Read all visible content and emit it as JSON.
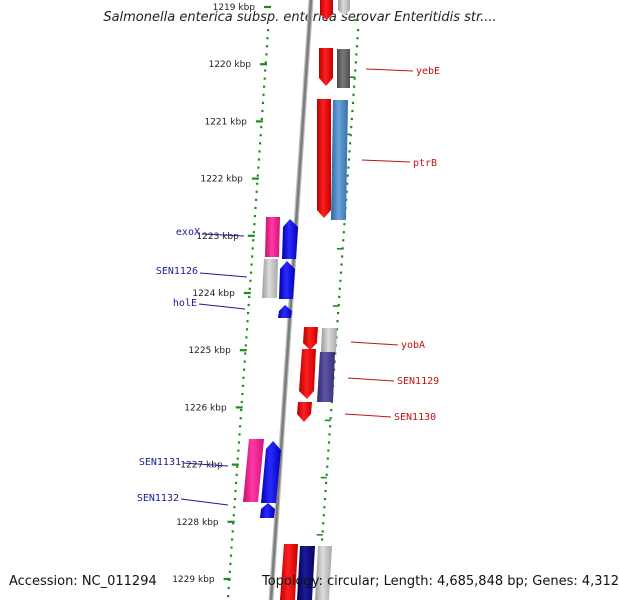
{
  "title": "Salmonella enterica subsp. enterica serovar Enteritidis str....",
  "footer": {
    "accession": "Accession: NC_011294",
    "stats": "Topology: circular; Length: 4,685,848 bp; Genes: 4,312"
  },
  "scale": {
    "ticks": [
      "1219 kbp",
      "1220 kbp",
      "1221 kbp",
      "1222 kbp",
      "1223 kbp",
      "1224 kbp",
      "1225 kbp",
      "1226 kbp",
      "1227 kbp",
      "1228 kbp",
      "1229 kbp"
    ]
  },
  "colors": {
    "forward_red": "#ee0000",
    "reverse_blue": "#0000ee",
    "forward_pink": "#ee1188",
    "grey": "#c0c0c0",
    "dark_grey": "#666666",
    "steel_blue": "#4a86c4",
    "indigo": "#4a3f8c",
    "navy": "#0a0a7a",
    "dots": "#1e8c1e",
    "backbone": "#8a8a8a"
  },
  "genes_left": [
    {
      "label": "exoX"
    },
    {
      "label": "SEN1126"
    },
    {
      "label": "holE"
    },
    {
      "label": "SEN1131"
    },
    {
      "label": "SEN1132"
    }
  ],
  "genes_right": [
    {
      "label": "yebE"
    },
    {
      "label": "ptrB"
    },
    {
      "label": "yobA"
    },
    {
      "label": "SEN1129"
    },
    {
      "label": "SEN1130"
    }
  ]
}
